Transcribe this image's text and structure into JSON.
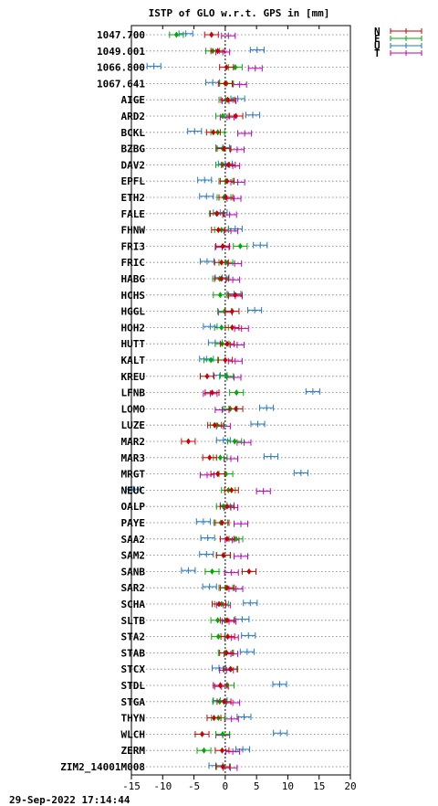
{
  "chart_data": {
    "type": "scatter",
    "title": "ISTP of GLO w.r.t. GPS in [mm]",
    "xlabel": "",
    "ylabel": "",
    "xlim": [
      -15,
      20
    ],
    "xticks": [
      -15,
      -10,
      -5,
      0,
      5,
      10,
      15,
      20
    ],
    "grid": "horizontal dotted",
    "legend_position": "top-right",
    "series": [
      {
        "name": "N",
        "color": "#cc0000"
      },
      {
        "name": "E",
        "color": "#00aa00"
      },
      {
        "name": "U",
        "color": "#1e78c8"
      },
      {
        "name": "T",
        "color": "#bb00bb"
      }
    ],
    "stations": [
      {
        "name": "1047.700",
        "N": -2.2,
        "E": -7.8,
        "U": -6.3,
        "T": 0.5
      },
      {
        "name": "1049.001",
        "N": -1.2,
        "E": -2.0,
        "U": 5.1,
        "T": -0.4
      },
      {
        "name": "1066.800",
        "N": 0.2,
        "E": 1.6,
        "U": -11.4,
        "T": 4.8
      },
      {
        "name": "1067.641",
        "N": 0.0,
        "E": 0.2,
        "U": -2.0,
        "T": 2.3
      },
      {
        "name": "AIGE",
        "N": 0.4,
        "E": 0.1,
        "U": 2.0,
        "T": 0.6
      },
      {
        "name": "ARD2",
        "N": 1.7,
        "E": -0.4,
        "U": 4.4,
        "T": 0.3
      },
      {
        "name": "BCKL",
        "N": -1.9,
        "E": -1.2,
        "U": -4.9,
        "T": 3.1
      },
      {
        "name": "BZBG",
        "N": -0.2,
        "E": -0.4,
        "U": -0.4,
        "T": 1.9
      },
      {
        "name": "DAV2",
        "N": 0.5,
        "E": -0.4,
        "U": 0.0,
        "T": 1.2
      },
      {
        "name": "EPFL",
        "N": 0.3,
        "E": 0.1,
        "U": -3.3,
        "T": 2.0
      },
      {
        "name": "ETH2",
        "N": 0.1,
        "E": -0.2,
        "U": -3.0,
        "T": 1.4
      },
      {
        "name": "FALE",
        "N": -1.3,
        "E": -1.4,
        "U": -0.8,
        "T": 0.7
      },
      {
        "name": "FHNW",
        "N": -1.1,
        "E": -0.6,
        "U": 1.6,
        "T": 0.9
      },
      {
        "name": "FRI3",
        "N": -0.4,
        "E": 2.4,
        "U": 5.6,
        "T": -0.5
      },
      {
        "name": "FRIC",
        "N": -0.6,
        "E": 0.1,
        "U": -2.9,
        "T": 1.5
      },
      {
        "name": "HABG",
        "N": -0.6,
        "E": -0.9,
        "U": -0.5,
        "T": 1.2
      },
      {
        "name": "HCHS",
        "N": 1.6,
        "E": -0.8,
        "U": 1.4,
        "T": 1.6
      },
      {
        "name": "HGGL",
        "N": 1.1,
        "E": -0.1,
        "U": 4.7,
        "T": 0.0
      },
      {
        "name": "HOH2",
        "N": 1.1,
        "E": -0.6,
        "U": -2.4,
        "T": 2.6
      },
      {
        "name": "HUTT",
        "N": 0.3,
        "E": -0.5,
        "U": -1.6,
        "T": 1.9
      },
      {
        "name": "KALT",
        "N": 0.0,
        "E": -2.3,
        "U": -3.0,
        "T": 1.6
      },
      {
        "name": "KREU",
        "N": -2.9,
        "E": 0.2,
        "U": -0.8,
        "T": 1.4
      },
      {
        "name": "LFNB",
        "N": -2.1,
        "E": 1.8,
        "U": 14.0,
        "T": -2.4
      },
      {
        "name": "LOMO",
        "N": 1.7,
        "E": 0.8,
        "U": 6.6,
        "T": -0.5
      },
      {
        "name": "LUZE",
        "N": -1.7,
        "E": -1.3,
        "U": 5.2,
        "T": -0.3
      },
      {
        "name": "MAR2",
        "N": -5.9,
        "E": 1.5,
        "U": -0.3,
        "T": 3.0
      },
      {
        "name": "MAR3",
        "N": -2.5,
        "E": -0.8,
        "U": 7.3,
        "T": 0.9
      },
      {
        "name": "MRGT",
        "N": -1.2,
        "E": 0.1,
        "U": 12.1,
        "T": -2.9
      },
      {
        "name": "NEUC",
        "N": 1.0,
        "E": 0.5,
        "U": -14.7,
        "T": 6.1
      },
      {
        "name": "OALP",
        "N": 0.3,
        "E": -0.3,
        "U": 0.3,
        "T": 0.9
      },
      {
        "name": "PAYE",
        "N": -0.5,
        "E": -0.7,
        "U": -3.5,
        "T": 2.5
      },
      {
        "name": "SAA2",
        "N": 0.3,
        "E": 1.7,
        "U": -2.8,
        "T": 1.1
      },
      {
        "name": "SAM2",
        "N": -0.3,
        "E": -0.3,
        "U": -3.0,
        "T": 2.5
      },
      {
        "name": "SANB",
        "N": 3.8,
        "E": -2.1,
        "U": -5.9,
        "T": 1.0
      },
      {
        "name": "SAR2",
        "N": 0.3,
        "E": 0.1,
        "U": -2.5,
        "T": 1.7
      },
      {
        "name": "SCHA",
        "N": -1.0,
        "E": -0.6,
        "U": 4.0,
        "T": -0.3
      },
      {
        "name": "SLTB",
        "N": 0.3,
        "E": -1.2,
        "U": 2.7,
        "T": 0.6
      },
      {
        "name": "STA2",
        "N": 0.4,
        "E": -1.1,
        "U": 3.7,
        "T": 1.0
      },
      {
        "name": "STAB",
        "N": 0.2,
        "E": 0.0,
        "U": 3.5,
        "T": 0.9
      },
      {
        "name": "STCX",
        "N": 0.8,
        "E": 0.9,
        "U": -1.0,
        "T": 0.2
      },
      {
        "name": "STDL",
        "N": -0.8,
        "E": 0.3,
        "U": 8.7,
        "T": -0.6
      },
      {
        "name": "STGA",
        "N": -0.2,
        "E": -0.9,
        "U": -0.8,
        "T": 1.2
      },
      {
        "name": "THYN",
        "N": -1.8,
        "E": -1.1,
        "U": 3.0,
        "T": 1.0
      },
      {
        "name": "WLCH",
        "N": -3.7,
        "E": -0.4,
        "U": 8.8,
        "T": -0.4
      },
      {
        "name": "ZERM",
        "N": -0.5,
        "E": -3.4,
        "U": 2.8,
        "T": 1.2
      },
      {
        "name": "ZIM2_14001M008",
        "N": -0.4,
        "E": -0.3,
        "U": -1.5,
        "T": 0.8
      }
    ]
  },
  "footer": {
    "timestamp": "29-Sep-2022 17:14:44"
  }
}
